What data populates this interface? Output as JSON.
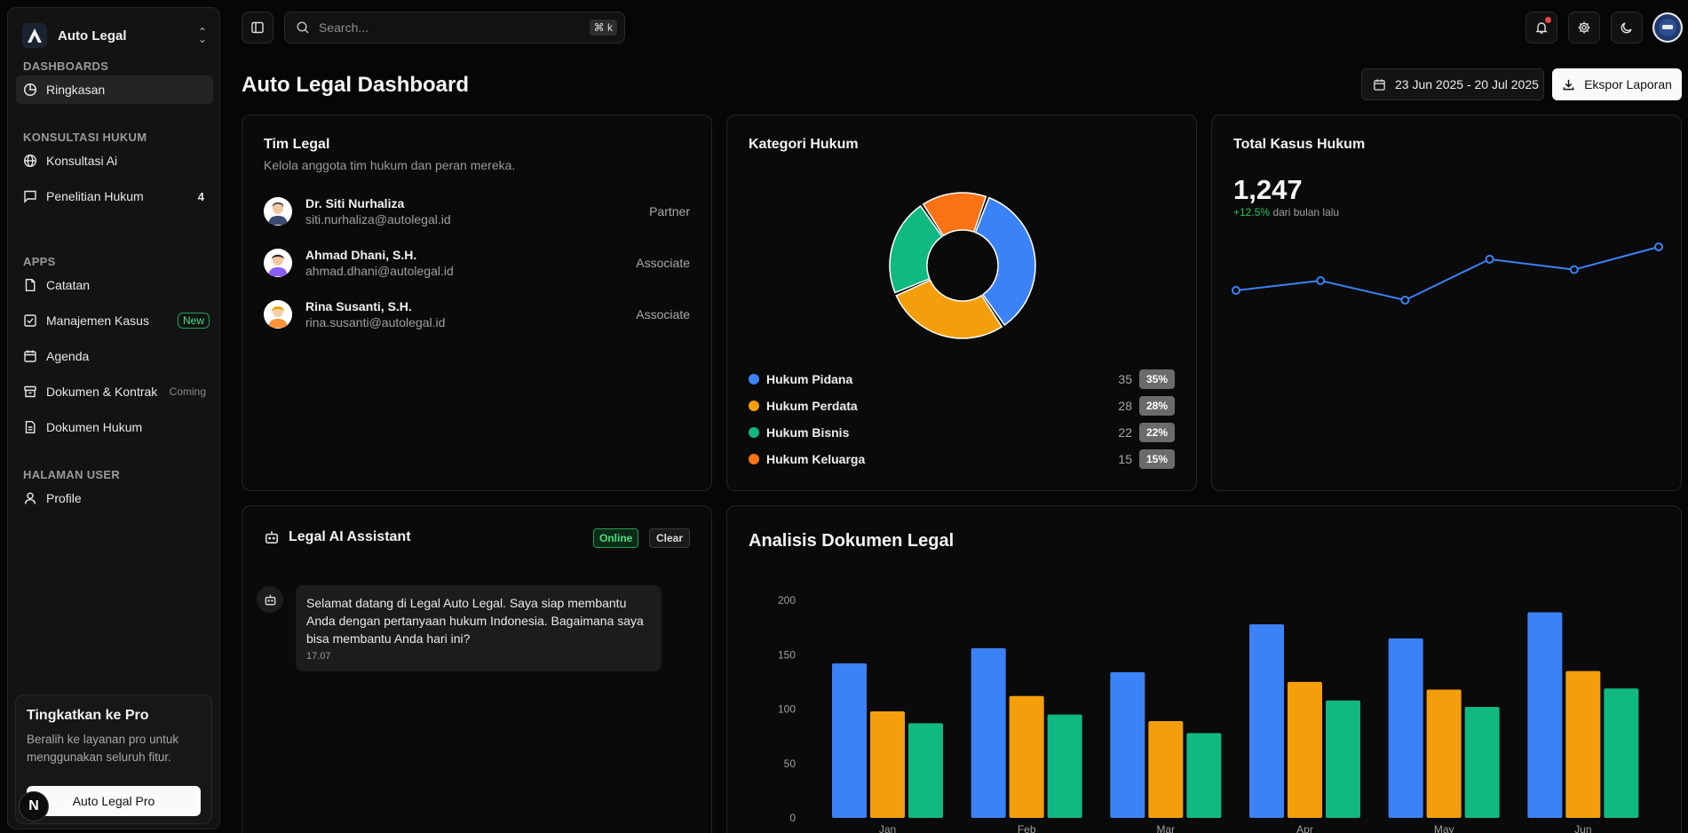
{
  "sidebar": {
    "brand": "Auto Legal",
    "sections": {
      "dashboards": "DASHBOARDS",
      "konsultasi": "KONSULTASI HUKUM",
      "apps": "APPS",
      "user": "HALAMAN USER"
    },
    "items": {
      "ringkasan": "Ringkasan",
      "konsultasi_ai": "Konsultasi Ai",
      "penelitian": "Penelitian Hukum",
      "penelitian_count": "4",
      "catatan": "Catatan",
      "manajemen": "Manajemen Kasus",
      "manajemen_badge": "New",
      "agenda": "Agenda",
      "dokumen_kontrak": "Dokumen & Kontrak",
      "dokumen_kontrak_badge": "Coming",
      "dokumen_hukum": "Dokumen Hukum",
      "profile": "Profile"
    },
    "promo": {
      "title": "Tingkatkan ke Pro",
      "desc": "Beralih ke layanan pro untuk menggunakan seluruh fitur.",
      "button": "Auto Legal Pro"
    },
    "n_badge": "N"
  },
  "topbar": {
    "search_placeholder": "Search...",
    "shortcut": "⌘ k"
  },
  "header": {
    "title": "Auto Legal Dashboard",
    "date_range": "23 Jun 2025 - 20 Jul 2025",
    "export": "Ekspor Laporan"
  },
  "team": {
    "title": "Tim Legal",
    "subtitle": "Kelola anggota tim hukum dan peran mereka.",
    "members": [
      {
        "name": "Dr. Siti Nurhaliza",
        "email": "siti.nurhaliza@autolegal.id",
        "role": "Partner"
      },
      {
        "name": "Ahmad Dhani, S.H.",
        "email": "ahmad.dhani@autolegal.id",
        "role": "Associate"
      },
      {
        "name": "Rina Susanti, S.H.",
        "email": "rina.susanti@autolegal.id",
        "role": "Associate"
      }
    ]
  },
  "categories": {
    "title": "Kategori Hukum",
    "items": [
      {
        "name": "Hukum Pidana",
        "value": "35",
        "pct": "35%",
        "color": "#3b82f6"
      },
      {
        "name": "Hukum Perdata",
        "value": "28",
        "pct": "28%",
        "color": "#f59e0b"
      },
      {
        "name": "Hukum Bisnis",
        "value": "22",
        "pct": "22%",
        "color": "#10b981"
      },
      {
        "name": "Hukum Keluarga",
        "value": "15",
        "pct": "15%",
        "color": "#f97316"
      }
    ]
  },
  "total": {
    "title": "Total Kasus Hukum",
    "value": "1,247",
    "growth": "+12.5%",
    "growth_suffix": "dari bulan lalu",
    "trend": [
      1180,
      1195,
      1165,
      1228,
      1212,
      1247
    ]
  },
  "assistant": {
    "title": "Legal AI Assistant",
    "status": "Online",
    "clear": "Clear",
    "message": "Selamat datang di Legal Auto Legal. Saya siap membantu Anda dengan pertanyaan hukum Indonesia. Bagaimana saya bisa membantu Anda hari ini?",
    "time": "17.07"
  },
  "chart_data": {
    "type": "bar",
    "title": "Analisis Dokumen Legal",
    "categories": [
      "Jan",
      "Feb",
      "Mar",
      "Apr",
      "May",
      "Jun"
    ],
    "yticks": [
      0,
      50,
      100,
      150,
      200
    ],
    "ylim": [
      0,
      200
    ],
    "series": [
      {
        "values": [
          142,
          156,
          134,
          178,
          165,
          189
        ],
        "color": "#3b82f6"
      },
      {
        "values": [
          98,
          112,
          89,
          125,
          118,
          135
        ],
        "color": "#f59e0b"
      },
      {
        "values": [
          87,
          95,
          78,
          108,
          102,
          119
        ],
        "color": "#10b981"
      }
    ]
  }
}
